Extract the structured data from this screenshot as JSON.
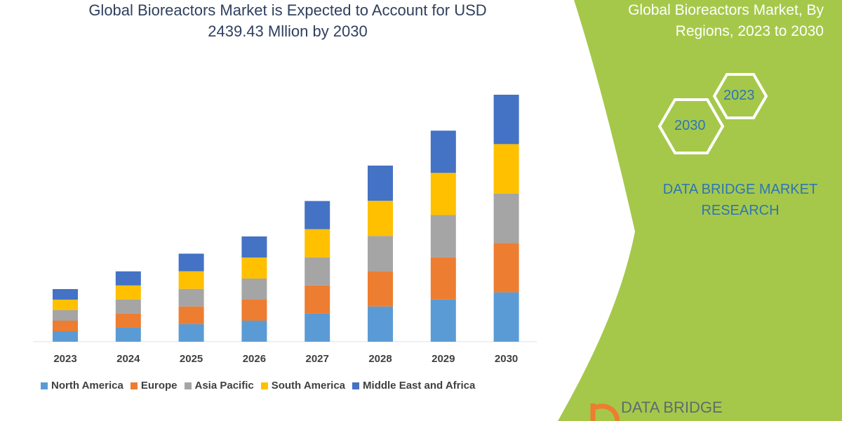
{
  "title": {
    "line1": "Global Bioreactors Market is Expected to Account for USD",
    "line2": "2439.43 Mllion by 2030"
  },
  "side_panel": {
    "title_line1": "Global Bioreactors Market, By",
    "title_line2": "Regions, 2023 to 2030",
    "hex_labels": [
      "2023",
      "2030"
    ],
    "brand_line1": "DATA BRIDGE MARKET",
    "brand_line2": "RESEARCH",
    "logo_text": "DATA BRIDGE",
    "panel_color": "#a5c84a"
  },
  "chart_data": {
    "type": "bar",
    "stacked": true,
    "categories": [
      "2023",
      "2024",
      "2025",
      "2026",
      "2027",
      "2028",
      "2029",
      "2030"
    ],
    "series": [
      {
        "name": "North America",
        "color": "#5b9bd5",
        "values": [
          104,
          139,
          174,
          208,
          278,
          348,
          417,
          488
        ]
      },
      {
        "name": "Europe",
        "color": "#ed7d31",
        "values": [
          104,
          139,
          174,
          208,
          278,
          348,
          417,
          488
        ]
      },
      {
        "name": "Asia Pacific",
        "color": "#a5a5a5",
        "values": [
          104,
          139,
          174,
          208,
          278,
          348,
          417,
          488
        ]
      },
      {
        "name": "South America",
        "color": "#ffc000",
        "values": [
          104,
          139,
          174,
          208,
          278,
          348,
          417,
          488
        ]
      },
      {
        "name": "Middle East and Africa",
        "color": "#4472c4",
        "values": [
          104,
          139,
          174,
          208,
          278,
          348,
          417,
          488
        ]
      }
    ],
    "ylim": [
      0,
      2440
    ],
    "grid": false,
    "legend": "bottom"
  }
}
